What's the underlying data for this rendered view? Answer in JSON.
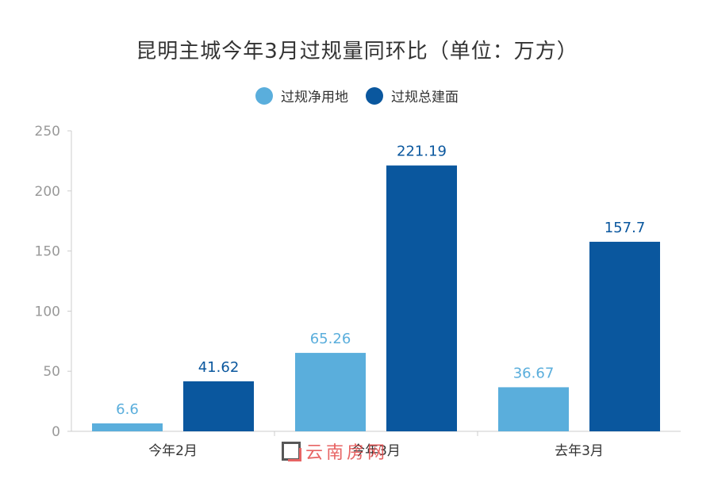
{
  "chart_data": {
    "type": "bar",
    "title": "昆明主城今年3月过规量同环比（单位：万方）",
    "categories": [
      "今年2月",
      "今年3月",
      "去年3月"
    ],
    "series": [
      {
        "name": "过规净用地",
        "color": "#5aaedc",
        "values": [
          6.6,
          65.26,
          36.67
        ],
        "labels": [
          "6.6",
          "65.26",
          "36.67"
        ]
      },
      {
        "name": "过规总建面",
        "color": "#0a579e",
        "values": [
          41.62,
          221.19,
          157.7
        ],
        "labels": [
          "41.62",
          "221.19",
          "157.7"
        ]
      }
    ],
    "ylim": [
      0,
      250
    ],
    "yticks": [
      "0",
      "50",
      "100",
      "150",
      "200",
      "250"
    ],
    "legend_position": "top-center",
    "grid": false
  },
  "watermark": {
    "text": "云南房网"
  }
}
